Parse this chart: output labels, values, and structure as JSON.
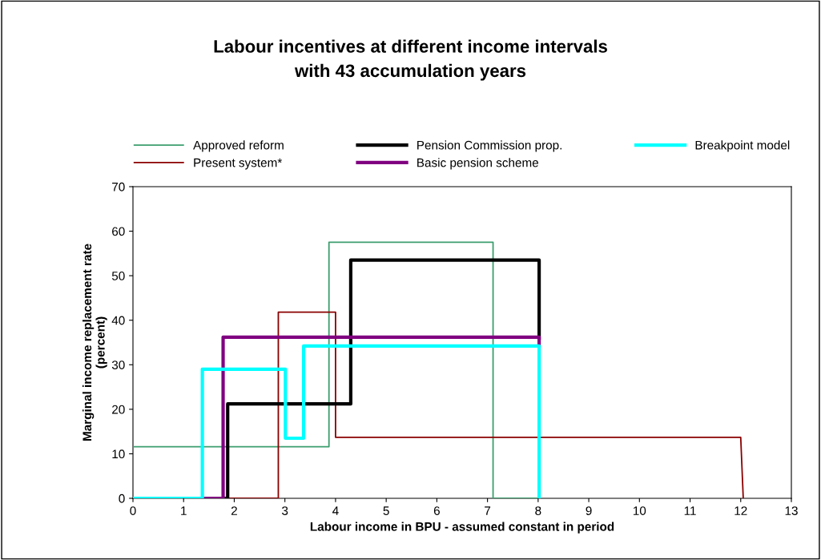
{
  "chart_data": {
    "type": "line",
    "title": "Labour incentives at different income intervals\nwith 43 accumulation years",
    "xlabel": "Labour income in BPU - assumed constant in period",
    "ylabel": "Marginal income replacement rate\n(percent)",
    "xlim": [
      0,
      13
    ],
    "xticks": [
      0,
      1,
      2,
      3,
      4,
      5,
      6,
      7,
      8,
      9,
      10,
      11,
      12,
      13
    ],
    "ylim": [
      0,
      70
    ],
    "yticks": [
      0,
      10,
      20,
      30,
      40,
      50,
      60,
      70
    ],
    "grid": false,
    "legend": "top",
    "marker": "none",
    "line_style": "solid",
    "series": [
      {
        "name": "Approved reform",
        "color": "#3c9e6e",
        "x": [
          0,
          3.87,
          3.87,
          7.11,
          7.11,
          8.0
        ],
        "values": [
          11.6,
          11.6,
          57.5,
          57.5,
          0,
          0
        ]
      },
      {
        "name": "Present system*",
        "color": "#8b0000",
        "x": [
          0,
          2.87,
          2.87,
          4.0,
          4.0,
          12.0,
          12.05
        ],
        "values": [
          0,
          0,
          41.8,
          41.8,
          13.7,
          13.7,
          0
        ]
      },
      {
        "name": "Pension Commission prop.",
        "color": "#000000",
        "x": [
          0,
          1.87,
          1.87,
          4.3,
          4.3,
          8.02,
          8.02
        ],
        "values": [
          0,
          0,
          21.2,
          21.2,
          53.5,
          53.5,
          36
        ]
      },
      {
        "name": "Basic pension scheme",
        "color": "#800080",
        "x": [
          0,
          1.78,
          1.78,
          8.02,
          8.02
        ],
        "values": [
          0,
          0,
          36.2,
          36.2,
          34.2
        ]
      },
      {
        "name": "Breakpoint model",
        "color": "#00ffff",
        "x": [
          0,
          1.37,
          1.37,
          3.01,
          3.01,
          3.37,
          3.37,
          8.02,
          8.02
        ],
        "values": [
          0,
          0,
          29,
          29,
          13.5,
          13.5,
          34.2,
          34.2,
          0
        ]
      }
    ]
  }
}
